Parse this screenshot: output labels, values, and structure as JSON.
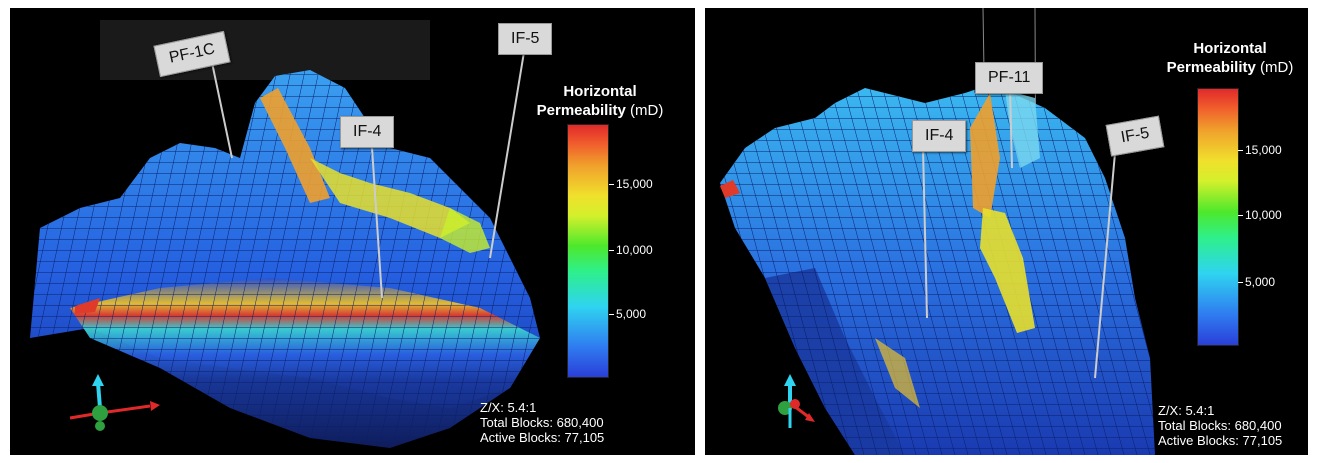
{
  "left_panel": {
    "wells": [
      "PF-1C",
      "IF-4",
      "IF-5"
    ],
    "legend": {
      "title_line1": "Horizontal",
      "title_line2": "Permeability",
      "unit": "(mD)",
      "ticks": [
        "15,000",
        "10,000",
        "5,000"
      ]
    },
    "stats": {
      "zx": "Z/X: 5.4:1",
      "total": "Total Blocks: 680,400",
      "active": "Active Blocks: 77,105"
    }
  },
  "right_panel": {
    "wells": [
      "PF-11",
      "IF-4",
      "IF-5"
    ],
    "legend": {
      "title_line1": "Horizontal",
      "title_line2": "Permeability",
      "unit": "(mD)",
      "ticks": [
        "15,000",
        "10,000",
        "5,000"
      ]
    },
    "stats": {
      "zx": "Z/X: 5.4:1",
      "total": "Total Blocks: 680,400",
      "active": "Active Blocks: 77,105"
    }
  }
}
